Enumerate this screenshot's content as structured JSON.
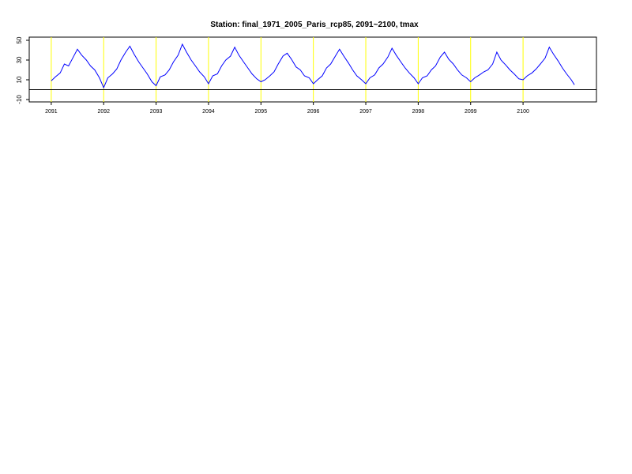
{
  "chart_data": {
    "type": "line",
    "title": "Station: final_1971_2005_Paris_rcp85, 2091~2100,  tmax",
    "x": [
      2091,
      2091.08,
      2091.17,
      2091.25,
      2091.33,
      2091.42,
      2091.5,
      2091.58,
      2091.67,
      2091.75,
      2091.83,
      2091.92,
      2092,
      2092.08,
      2092.17,
      2092.25,
      2092.33,
      2092.42,
      2092.5,
      2092.58,
      2092.67,
      2092.75,
      2092.83,
      2092.92,
      2093,
      2093.08,
      2093.17,
      2093.25,
      2093.33,
      2093.42,
      2093.5,
      2093.58,
      2093.67,
      2093.75,
      2093.83,
      2093.92,
      2094,
      2094.08,
      2094.17,
      2094.25,
      2094.33,
      2094.42,
      2094.5,
      2094.58,
      2094.67,
      2094.75,
      2094.83,
      2094.92,
      2095,
      2095.08,
      2095.17,
      2095.25,
      2095.33,
      2095.42,
      2095.5,
      2095.58,
      2095.67,
      2095.75,
      2095.83,
      2095.92,
      2096,
      2096.08,
      2096.17,
      2096.25,
      2096.33,
      2096.42,
      2096.5,
      2096.58,
      2096.67,
      2096.75,
      2096.83,
      2096.92,
      2097,
      2097.08,
      2097.17,
      2097.25,
      2097.33,
      2097.42,
      2097.5,
      2097.58,
      2097.67,
      2097.75,
      2097.83,
      2097.92,
      2098,
      2098.08,
      2098.17,
      2098.25,
      2098.33,
      2098.42,
      2098.5,
      2098.58,
      2098.67,
      2098.75,
      2098.83,
      2098.92,
      2099,
      2099.08,
      2099.17,
      2099.25,
      2099.33,
      2099.42,
      2099.5,
      2099.58,
      2099.67,
      2099.75,
      2099.83,
      2099.92,
      2100,
      2100.08,
      2100.17,
      2100.25,
      2100.33,
      2100.42,
      2100.5,
      2100.58,
      2100.67,
      2100.75,
      2100.83,
      2100.92,
      2100.98
    ],
    "series": [
      {
        "name": "tmax",
        "color": "#0000ff",
        "values": [
          9,
          13,
          17,
          26,
          24,
          33,
          41,
          35,
          30,
          24,
          20,
          12,
          2,
          12,
          16,
          21,
          30,
          38,
          44,
          36,
          28,
          22,
          16,
          8,
          4,
          13,
          15,
          20,
          28,
          35,
          46,
          38,
          30,
          24,
          18,
          13,
          6,
          14,
          16,
          24,
          30,
          34,
          43,
          35,
          28,
          22,
          16,
          11,
          8,
          10,
          14,
          18,
          26,
          34,
          37,
          31,
          23,
          20,
          14,
          12,
          6,
          10,
          14,
          22,
          26,
          34,
          41,
          34,
          27,
          20,
          14,
          10,
          6,
          12,
          15,
          22,
          26,
          33,
          42,
          35,
          28,
          22,
          17,
          12,
          6,
          12,
          14,
          20,
          24,
          33,
          38,
          31,
          26,
          20,
          15,
          12,
          8,
          12,
          15,
          18,
          20,
          26,
          38,
          30,
          25,
          20,
          16,
          11,
          10,
          14,
          17,
          21,
          26,
          32,
          43,
          36,
          29,
          22,
          16,
          10,
          5
        ]
      }
    ],
    "xlim": [
      2090.58,
      2101.4
    ],
    "ylim": [
      -12.4,
      53.2
    ],
    "xticks": [
      2091,
      2092,
      2093,
      2094,
      2095,
      2096,
      2097,
      2098,
      2099,
      2100
    ],
    "yticks": [
      -10,
      10,
      30,
      50
    ],
    "reference_line": 0,
    "vline_color": "#ffff00"
  }
}
